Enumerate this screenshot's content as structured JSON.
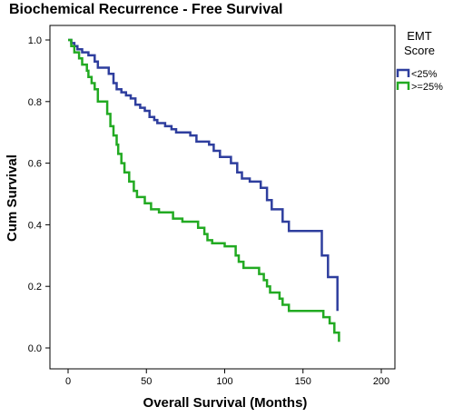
{
  "chart_data": {
    "type": "line",
    "step": true,
    "title": "Biochemical Recurrence - Free Survival",
    "xlabel": "Overall Survival (Months)",
    "ylabel": "Cum Survival",
    "xlim": [
      0,
      200
    ],
    "ylim": [
      0,
      1.0
    ],
    "xticks": [
      "0",
      "50",
      "100",
      "150",
      "200"
    ],
    "yticks": [
      "0.0",
      "0.2",
      "0.4",
      "0.6",
      "0.8",
      "1.0"
    ],
    "grid": false,
    "legend": {
      "title_line1": "EMT",
      "title_line2": "Score",
      "placement": "right",
      "entries": [
        "<25%",
        ">=25%"
      ]
    },
    "series": [
      {
        "name": "<25%",
        "color": "#2e3e9e",
        "points": [
          [
            0,
            1.0
          ],
          [
            2,
            0.99
          ],
          [
            4,
            0.98
          ],
          [
            6,
            0.97
          ],
          [
            9,
            0.96
          ],
          [
            13,
            0.95
          ],
          [
            17,
            0.93
          ],
          [
            19,
            0.91
          ],
          [
            26,
            0.89
          ],
          [
            29,
            0.86
          ],
          [
            31,
            0.84
          ],
          [
            34,
            0.83
          ],
          [
            37,
            0.82
          ],
          [
            40,
            0.81
          ],
          [
            43,
            0.79
          ],
          [
            46,
            0.78
          ],
          [
            49,
            0.77
          ],
          [
            52,
            0.75
          ],
          [
            55,
            0.74
          ],
          [
            57,
            0.73
          ],
          [
            62,
            0.72
          ],
          [
            66,
            0.71
          ],
          [
            69,
            0.7
          ],
          [
            78,
            0.69
          ],
          [
            82,
            0.67
          ],
          [
            90,
            0.66
          ],
          [
            93,
            0.64
          ],
          [
            97,
            0.62
          ],
          [
            104,
            0.6
          ],
          [
            108,
            0.57
          ],
          [
            111,
            0.55
          ],
          [
            116,
            0.54
          ],
          [
            123,
            0.52
          ],
          [
            127,
            0.48
          ],
          [
            130,
            0.45
          ],
          [
            137,
            0.41
          ],
          [
            141,
            0.38
          ],
          [
            162,
            0.3
          ],
          [
            166,
            0.23
          ],
          [
            172,
            0.12
          ]
        ]
      },
      {
        "name": ">=25%",
        "color": "#22aa22",
        "points": [
          [
            0,
            1.0
          ],
          [
            2,
            0.98
          ],
          [
            4,
            0.96
          ],
          [
            7,
            0.94
          ],
          [
            9,
            0.92
          ],
          [
            12,
            0.9
          ],
          [
            13,
            0.88
          ],
          [
            15,
            0.86
          ],
          [
            17,
            0.84
          ],
          [
            19,
            0.8
          ],
          [
            25,
            0.76
          ],
          [
            27,
            0.72
          ],
          [
            29,
            0.69
          ],
          [
            31,
            0.66
          ],
          [
            32,
            0.63
          ],
          [
            34,
            0.6
          ],
          [
            36,
            0.57
          ],
          [
            39,
            0.54
          ],
          [
            42,
            0.51
          ],
          [
            44,
            0.49
          ],
          [
            49,
            0.47
          ],
          [
            53,
            0.45
          ],
          [
            58,
            0.44
          ],
          [
            67,
            0.42
          ],
          [
            73,
            0.41
          ],
          [
            83,
            0.39
          ],
          [
            87,
            0.37
          ],
          [
            89,
            0.35
          ],
          [
            92,
            0.34
          ],
          [
            100,
            0.33
          ],
          [
            107,
            0.3
          ],
          [
            109,
            0.28
          ],
          [
            112,
            0.26
          ],
          [
            122,
            0.24
          ],
          [
            125,
            0.22
          ],
          [
            127,
            0.2
          ],
          [
            129,
            0.18
          ],
          [
            135,
            0.16
          ],
          [
            137,
            0.14
          ],
          [
            141,
            0.12
          ],
          [
            163,
            0.1
          ],
          [
            167,
            0.08
          ],
          [
            170,
            0.05
          ],
          [
            173,
            0.02
          ]
        ]
      }
    ]
  }
}
